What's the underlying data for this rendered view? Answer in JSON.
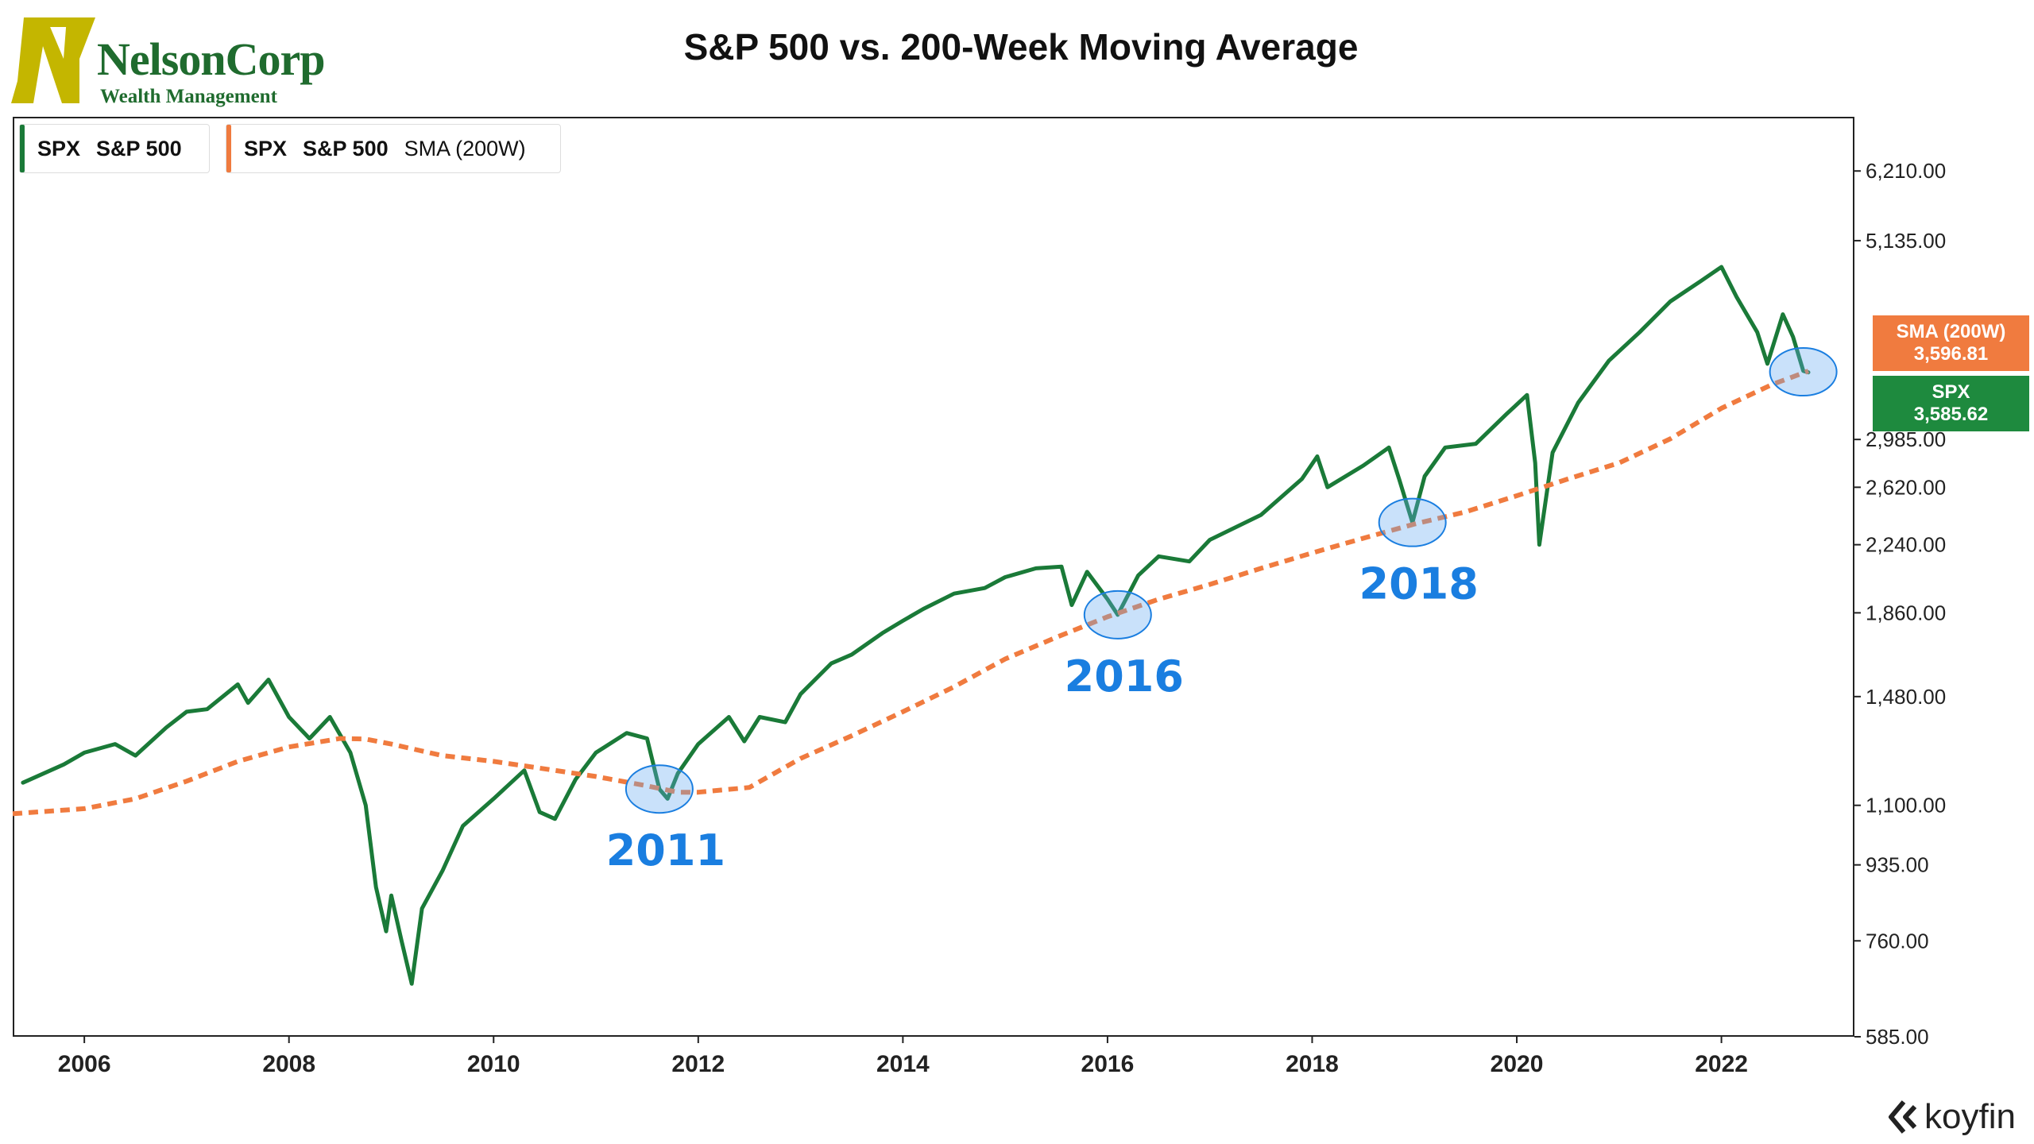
{
  "logo": {
    "name": "NelsonCorp",
    "subtitle": "Wealth Management",
    "mark_color": "#c4b600",
    "text_color": "#1f6b2e"
  },
  "chart_data": {
    "type": "line",
    "title": "S&P 500 vs. 200-Week Moving Average",
    "xlabel": "",
    "ylabel": "",
    "y_scale": "log",
    "xlim": [
      2005.3,
      2023.3
    ],
    "ylim": [
      585,
      7200
    ],
    "x_ticks": [
      "2006",
      "2008",
      "2010",
      "2012",
      "2014",
      "2016",
      "2018",
      "2020",
      "2022"
    ],
    "y_ticks": [
      6210,
      5135,
      2985,
      2620,
      2240,
      1860,
      1480,
      1100,
      935,
      760,
      585
    ],
    "y_tick_labels": [
      "6,210.00",
      "5,135.00",
      "2,985.00",
      "2,620.00",
      "2,240.00",
      "1,860.00",
      "1,480.00",
      "1,100.00",
      "935.00",
      "760.00",
      "585.00"
    ],
    "grid": false,
    "legend": "top-left",
    "series": [
      {
        "name": "S&P 500",
        "ticker": "SPX",
        "color": "#1a7a38",
        "style": "solid",
        "points": [
          [
            2005.4,
            1170
          ],
          [
            2005.8,
            1230
          ],
          [
            2006.0,
            1270
          ],
          [
            2006.3,
            1300
          ],
          [
            2006.5,
            1260
          ],
          [
            2006.8,
            1360
          ],
          [
            2007.0,
            1420
          ],
          [
            2007.2,
            1430
          ],
          [
            2007.5,
            1530
          ],
          [
            2007.6,
            1455
          ],
          [
            2007.8,
            1550
          ],
          [
            2008.0,
            1400
          ],
          [
            2008.2,
            1320
          ],
          [
            2008.4,
            1400
          ],
          [
            2008.6,
            1270
          ],
          [
            2008.75,
            1100
          ],
          [
            2008.85,
            880
          ],
          [
            2008.95,
            780
          ],
          [
            2009.0,
            860
          ],
          [
            2009.1,
            760
          ],
          [
            2009.2,
            676
          ],
          [
            2009.3,
            830
          ],
          [
            2009.5,
            920
          ],
          [
            2009.7,
            1040
          ],
          [
            2010.0,
            1120
          ],
          [
            2010.3,
            1210
          ],
          [
            2010.45,
            1080
          ],
          [
            2010.6,
            1060
          ],
          [
            2010.8,
            1180
          ],
          [
            2011.0,
            1270
          ],
          [
            2011.3,
            1340
          ],
          [
            2011.5,
            1320
          ],
          [
            2011.62,
            1150
          ],
          [
            2011.7,
            1120
          ],
          [
            2011.8,
            1200
          ],
          [
            2012.0,
            1300
          ],
          [
            2012.3,
            1400
          ],
          [
            2012.45,
            1310
          ],
          [
            2012.6,
            1400
          ],
          [
            2012.85,
            1380
          ],
          [
            2013.0,
            1490
          ],
          [
            2013.3,
            1620
          ],
          [
            2013.5,
            1660
          ],
          [
            2013.8,
            1760
          ],
          [
            2014.0,
            1820
          ],
          [
            2014.2,
            1880
          ],
          [
            2014.5,
            1960
          ],
          [
            2014.8,
            1990
          ],
          [
            2015.0,
            2050
          ],
          [
            2015.3,
            2100
          ],
          [
            2015.55,
            2110
          ],
          [
            2015.65,
            1900
          ],
          [
            2015.8,
            2080
          ],
          [
            2016.0,
            1930
          ],
          [
            2016.1,
            1850
          ],
          [
            2016.3,
            2060
          ],
          [
            2016.5,
            2170
          ],
          [
            2016.8,
            2140
          ],
          [
            2017.0,
            2270
          ],
          [
            2017.5,
            2430
          ],
          [
            2017.9,
            2680
          ],
          [
            2018.05,
            2850
          ],
          [
            2018.15,
            2620
          ],
          [
            2018.5,
            2780
          ],
          [
            2018.75,
            2920
          ],
          [
            2018.85,
            2680
          ],
          [
            2018.98,
            2380
          ],
          [
            2019.1,
            2700
          ],
          [
            2019.3,
            2920
          ],
          [
            2019.6,
            2950
          ],
          [
            2019.9,
            3200
          ],
          [
            2020.1,
            3370
          ],
          [
            2020.18,
            2800
          ],
          [
            2020.22,
            2240
          ],
          [
            2020.35,
            2880
          ],
          [
            2020.6,
            3300
          ],
          [
            2020.9,
            3700
          ],
          [
            2021.2,
            4000
          ],
          [
            2021.5,
            4350
          ],
          [
            2021.8,
            4600
          ],
          [
            2022.0,
            4780
          ],
          [
            2022.15,
            4400
          ],
          [
            2022.35,
            4000
          ],
          [
            2022.45,
            3670
          ],
          [
            2022.6,
            4200
          ],
          [
            2022.7,
            3950
          ],
          [
            2022.8,
            3600
          ],
          [
            2022.85,
            3585
          ]
        ]
      },
      {
        "name": "S&P 500",
        "ticker": "SPX",
        "extra": "SMA (200W)",
        "color": "#f07b3f",
        "style": "dashed",
        "points": [
          [
            2005.3,
            1075
          ],
          [
            2006.0,
            1090
          ],
          [
            2006.5,
            1120
          ],
          [
            2007.0,
            1175
          ],
          [
            2007.5,
            1240
          ],
          [
            2008.0,
            1290
          ],
          [
            2008.5,
            1320
          ],
          [
            2008.75,
            1318
          ],
          [
            2009.0,
            1300
          ],
          [
            2009.5,
            1260
          ],
          [
            2010.0,
            1240
          ],
          [
            2010.5,
            1215
          ],
          [
            2011.0,
            1190
          ],
          [
            2011.5,
            1160
          ],
          [
            2011.8,
            1140
          ],
          [
            2012.0,
            1140
          ],
          [
            2012.5,
            1155
          ],
          [
            2013.0,
            1250
          ],
          [
            2013.5,
            1330
          ],
          [
            2014.0,
            1420
          ],
          [
            2014.5,
            1520
          ],
          [
            2015.0,
            1640
          ],
          [
            2015.5,
            1740
          ],
          [
            2016.0,
            1840
          ],
          [
            2016.5,
            1930
          ],
          [
            2017.0,
            2010
          ],
          [
            2017.5,
            2100
          ],
          [
            2018.0,
            2190
          ],
          [
            2018.5,
            2280
          ],
          [
            2019.0,
            2370
          ],
          [
            2019.5,
            2450
          ],
          [
            2020.0,
            2560
          ],
          [
            2020.5,
            2680
          ],
          [
            2021.0,
            2800
          ],
          [
            2021.5,
            2990
          ],
          [
            2022.0,
            3250
          ],
          [
            2022.5,
            3470
          ],
          [
            2022.85,
            3597
          ]
        ]
      }
    ],
    "annotations": [
      {
        "label": "2011",
        "x": 2011.62,
        "y": 1150,
        "color": "#1a7ee0"
      },
      {
        "label": "2016",
        "x": 2016.1,
        "y": 1850,
        "color": "#1a7ee0"
      },
      {
        "label": "2018",
        "x": 2018.98,
        "y": 2380,
        "color": "#1a7ee0"
      },
      {
        "label": "",
        "x": 2022.8,
        "y": 3590,
        "color": "#1a7ee0"
      }
    ],
    "last_values": {
      "sma": {
        "label": "SMA (200W)",
        "value": "3,596.81"
      },
      "spx": {
        "label": "SPX",
        "value": "3,585.62"
      }
    }
  },
  "brand": {
    "name": "koyfin"
  }
}
